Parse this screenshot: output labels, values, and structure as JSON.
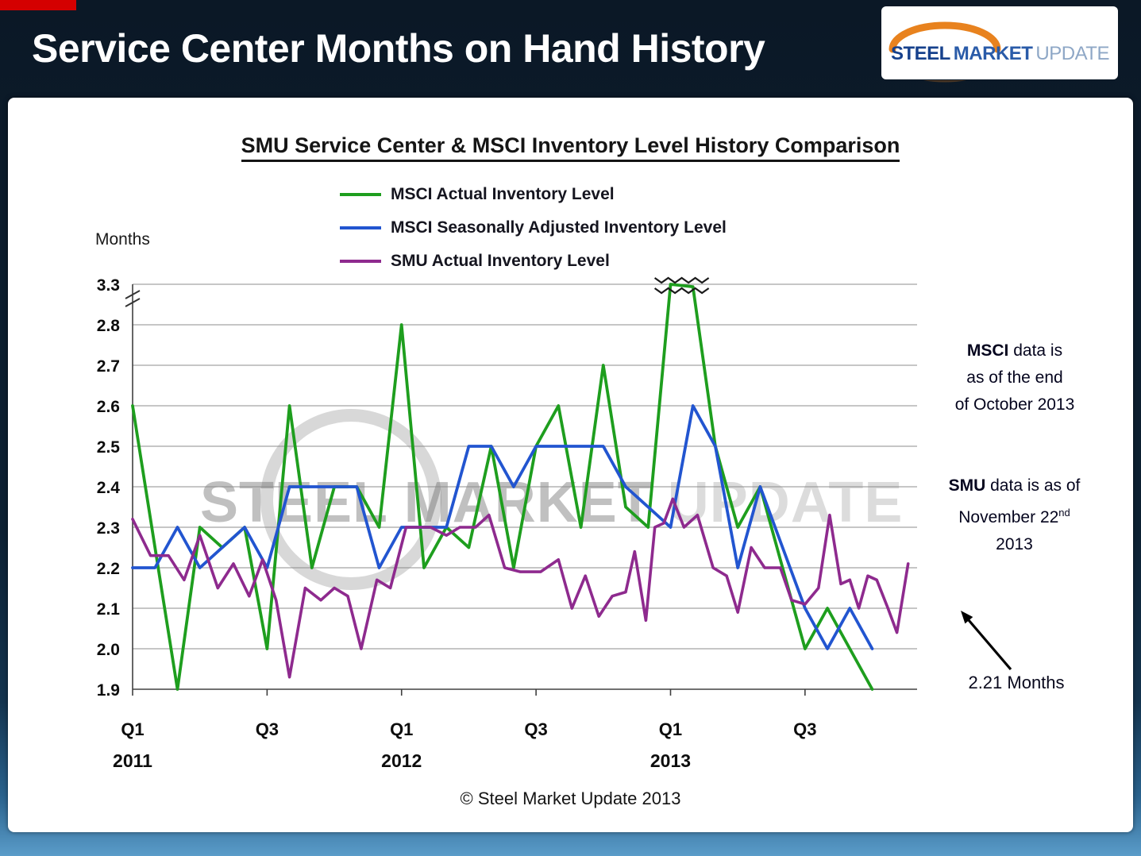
{
  "header": {
    "title": "Service Center Months on Hand History"
  },
  "logo": {
    "steel": "STEEL",
    "market": "MARKET",
    "update": "UPDATE"
  },
  "watermark": {
    "text1": "STEEL MARKET",
    "text2": "UPDATE"
  },
  "notes": {
    "msci": {
      "bold": "MSCI",
      "line1_rest": " data is",
      "line2": "as of the end",
      "line3": "of October 2013"
    },
    "smu": {
      "bold": "SMU",
      "line1_rest": " data is as of",
      "line2_pre": "November 22",
      "line2_sup": "nd",
      "line3": "2013"
    },
    "callout": "2.21 Months"
  },
  "footer": {
    "copyright": "© Steel Market Update 2013"
  },
  "colors": {
    "accent_red": "#d40000",
    "header_navy": "#0d2133",
    "logo_orange": "#e8821e",
    "logo_blue": "#16418c",
    "msci_actual_green": "#1e9e1e",
    "msci_seasonal_blue": "#2255d0",
    "smu_actual_purple": "#8e2a8e"
  },
  "chart_data": {
    "type": "line",
    "title": "SMU Service Center & MSCI Inventory Level History Comparison",
    "ylabel": "Months",
    "grid": true,
    "legend_position": "top",
    "y_ticks": [
      3.3,
      2.8,
      2.7,
      2.6,
      2.5,
      2.4,
      2.3,
      2.2,
      2.1,
      2.0,
      1.9
    ],
    "y_axis_break_between": [
      2.8,
      3.3
    ],
    "x_unit": "months since Jan 2011",
    "x_range": [
      0,
      35
    ],
    "x_ticks": [
      {
        "pos": 0,
        "label": "Q1",
        "year": "2011"
      },
      {
        "pos": 6,
        "label": "Q3",
        "year": ""
      },
      {
        "pos": 12,
        "label": "Q1",
        "year": "2012"
      },
      {
        "pos": 18,
        "label": "Q3",
        "year": ""
      },
      {
        "pos": 24,
        "label": "Q1",
        "year": "2013"
      },
      {
        "pos": 30,
        "label": "Q3",
        "year": ""
      }
    ],
    "off_scale_x": 24.5,
    "series": [
      {
        "name": "MSCI Actual Inventory Level",
        "color": "#1e9e1e",
        "points": [
          [
            0,
            2.6
          ],
          [
            1,
            2.25
          ],
          [
            2,
            1.9
          ],
          [
            3,
            2.3
          ],
          [
            4,
            2.25
          ],
          [
            5,
            2.3
          ],
          [
            6,
            2.0
          ],
          [
            7,
            2.6
          ],
          [
            8,
            2.2
          ],
          [
            9,
            2.4
          ],
          [
            10,
            2.4
          ],
          [
            11,
            2.3
          ],
          [
            12,
            2.8
          ],
          [
            13,
            2.2
          ],
          [
            14,
            2.3
          ],
          [
            15,
            2.25
          ],
          [
            16,
            2.5
          ],
          [
            17,
            2.2
          ],
          [
            18,
            2.5
          ],
          [
            19,
            2.6
          ],
          [
            20,
            2.3
          ],
          [
            21,
            2.7
          ],
          [
            22,
            2.35
          ],
          [
            23,
            2.3
          ],
          [
            24,
            3.3
          ],
          [
            25,
            3.27
          ],
          [
            26,
            2.5
          ],
          [
            27,
            2.3
          ],
          [
            28,
            2.4
          ],
          [
            29,
            2.2
          ],
          [
            30,
            2.0
          ],
          [
            31,
            2.1
          ],
          [
            32,
            2.0
          ],
          [
            33,
            1.9
          ]
        ]
      },
      {
        "name": "MSCI Seasonally Adjusted Inventory Level",
        "color": "#2255d0",
        "points": [
          [
            0,
            2.2
          ],
          [
            1,
            2.2
          ],
          [
            2,
            2.3
          ],
          [
            3,
            2.2
          ],
          [
            4,
            2.25
          ],
          [
            5,
            2.3
          ],
          [
            6,
            2.2
          ],
          [
            7,
            2.4
          ],
          [
            8,
            2.4
          ],
          [
            9,
            2.4
          ],
          [
            10,
            2.4
          ],
          [
            11,
            2.2
          ],
          [
            12,
            2.3
          ],
          [
            13,
            2.3
          ],
          [
            14,
            2.3
          ],
          [
            15,
            2.5
          ],
          [
            16,
            2.5
          ],
          [
            17,
            2.4
          ],
          [
            18,
            2.5
          ],
          [
            19,
            2.5
          ],
          [
            20,
            2.5
          ],
          [
            21,
            2.5
          ],
          [
            22,
            2.4
          ],
          [
            23,
            2.35
          ],
          [
            24,
            2.3
          ],
          [
            25,
            2.6
          ],
          [
            26,
            2.5
          ],
          [
            27,
            2.2
          ],
          [
            28,
            2.4
          ],
          [
            29,
            2.25
          ],
          [
            30,
            2.1
          ],
          [
            31,
            2.0
          ],
          [
            32,
            2.1
          ],
          [
            33,
            2.0
          ]
        ]
      },
      {
        "name": "SMU Actual Inventory Level",
        "color": "#8e2a8e",
        "points": [
          [
            0,
            2.32
          ],
          [
            0.8,
            2.23
          ],
          [
            1.6,
            2.23
          ],
          [
            2.3,
            2.17
          ],
          [
            3,
            2.28
          ],
          [
            3.8,
            2.15
          ],
          [
            4.5,
            2.21
          ],
          [
            5.2,
            2.13
          ],
          [
            5.8,
            2.22
          ],
          [
            6.4,
            2.12
          ],
          [
            7,
            1.93
          ],
          [
            7.7,
            2.15
          ],
          [
            8.4,
            2.12
          ],
          [
            9,
            2.15
          ],
          [
            9.6,
            2.13
          ],
          [
            10.2,
            2.0
          ],
          [
            10.9,
            2.17
          ],
          [
            11.5,
            2.15
          ],
          [
            12.2,
            2.3
          ],
          [
            13.3,
            2.3
          ],
          [
            14,
            2.28
          ],
          [
            14.6,
            2.3
          ],
          [
            15.3,
            2.3
          ],
          [
            15.9,
            2.33
          ],
          [
            16.6,
            2.2
          ],
          [
            17.3,
            2.19
          ],
          [
            18.2,
            2.19
          ],
          [
            19,
            2.22
          ],
          [
            19.6,
            2.1
          ],
          [
            20.2,
            2.18
          ],
          [
            20.8,
            2.08
          ],
          [
            21.4,
            2.13
          ],
          [
            22,
            2.14
          ],
          [
            22.4,
            2.24
          ],
          [
            22.9,
            2.07
          ],
          [
            23.3,
            2.3
          ],
          [
            23.7,
            2.31
          ],
          [
            24.1,
            2.37
          ],
          [
            24.6,
            2.3
          ],
          [
            25.2,
            2.33
          ],
          [
            25.9,
            2.2
          ],
          [
            26.5,
            2.18
          ],
          [
            27,
            2.09
          ],
          [
            27.6,
            2.25
          ],
          [
            28.2,
            2.2
          ],
          [
            28.9,
            2.2
          ],
          [
            29.4,
            2.12
          ],
          [
            30,
            2.11
          ],
          [
            30.6,
            2.15
          ],
          [
            31.1,
            2.33
          ],
          [
            31.6,
            2.16
          ],
          [
            32,
            2.17
          ],
          [
            32.4,
            2.1
          ],
          [
            32.8,
            2.18
          ],
          [
            33.2,
            2.17
          ],
          [
            33.7,
            2.1
          ],
          [
            34.1,
            2.04
          ],
          [
            34.6,
            2.21
          ]
        ]
      }
    ]
  }
}
